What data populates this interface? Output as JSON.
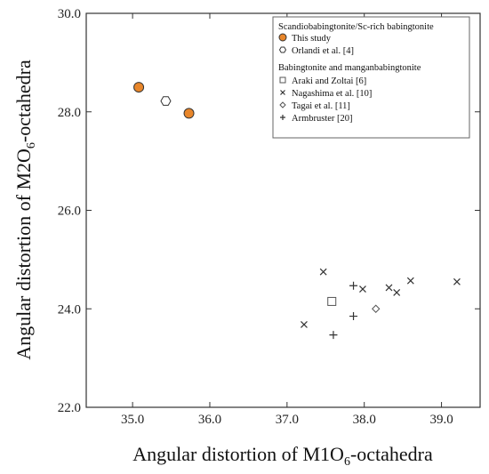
{
  "chart_data": {
    "type": "scatter",
    "xlabel": {
      "main": "Angular distortion of M1O",
      "sub": "6",
      "tail": "-octahedra"
    },
    "ylabel": {
      "main": "Angular distortion of M2O",
      "sub": "6",
      "tail": "-octahedra"
    },
    "xlim": [
      34.4,
      39.5
    ],
    "ylim": [
      22.0,
      30.0
    ],
    "xticks": [
      35.0,
      36.0,
      37.0,
      38.0,
      39.0
    ],
    "yticks": [
      22.0,
      24.0,
      26.0,
      28.0,
      30.0
    ],
    "xtick_labels": [
      "35.0",
      "36.0",
      "37.0",
      "38.0",
      "39.0"
    ],
    "ytick_labels": [
      "22.0",
      "24.0",
      "26.0",
      "28.0",
      "30.0"
    ],
    "grid": false,
    "legend_position": "top-right",
    "legend": {
      "group1_title": "Scandiobabingtonite/Sc-rich babingtonite",
      "group2_title": "Babingtonite and manganbabingtonite"
    },
    "series": [
      {
        "name": "This study",
        "marker": "filled-circle",
        "color": "#e8862a",
        "points": [
          [
            35.08,
            28.5
          ],
          [
            35.73,
            27.97
          ]
        ]
      },
      {
        "name": "Orlandi et al. [4]",
        "marker": "hexagon",
        "points": [
          [
            35.43,
            28.22
          ]
        ]
      },
      {
        "name": "Araki and Zoltai [6]",
        "marker": "square",
        "points": [
          [
            37.58,
            24.15
          ]
        ]
      },
      {
        "name": "Nagashima et al. [10]",
        "marker": "x",
        "points": [
          [
            37.47,
            24.75
          ],
          [
            37.98,
            24.4
          ],
          [
            38.32,
            24.43
          ],
          [
            38.42,
            24.33
          ],
          [
            38.6,
            24.57
          ],
          [
            39.2,
            24.55
          ],
          [
            37.22,
            23.68
          ]
        ]
      },
      {
        "name": "Tagai et al. [11]",
        "marker": "diamond",
        "points": [
          [
            38.15,
            24.0
          ]
        ]
      },
      {
        "name": "Armbruster [20]",
        "marker": "plus",
        "points": [
          [
            37.86,
            24.47
          ],
          [
            37.86,
            23.85
          ],
          [
            37.6,
            23.47
          ]
        ]
      }
    ]
  }
}
